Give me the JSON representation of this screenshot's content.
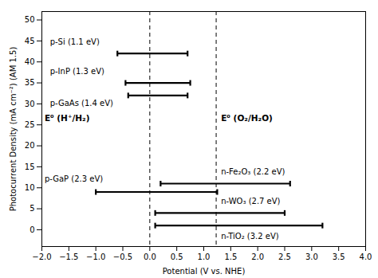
{
  "chart_data": {
    "type": "range_bar",
    "orientation": "horizontal",
    "color": "#000000",
    "xlabel": "Potential (V vs. NHE)",
    "ylabel": "Photocurrent Density (mA cm⁻²) (AM 1.5)",
    "xlim": [
      -2.0,
      4.0
    ],
    "ylim": [
      -4,
      52
    ],
    "xticks": [
      {
        "value": -2.0,
        "label": "−2.0"
      },
      {
        "value": -1.5,
        "label": "−1.5"
      },
      {
        "value": -1.0,
        "label": "−1.0"
      },
      {
        "value": -0.5,
        "label": "−0.5"
      },
      {
        "value": 0.0,
        "label": "0.0"
      },
      0.5,
      {
        "value": 1.0,
        "label": "1.0"
      },
      1.5,
      {
        "value": 2.0,
        "label": "2.0"
      },
      2.5,
      {
        "value": 3.0,
        "label": "3.0"
      },
      3.5,
      {
        "value": 4.0,
        "label": "4.0"
      }
    ],
    "yticks": [
      0,
      5,
      10,
      15,
      20,
      25,
      30,
      35,
      40,
      45,
      50
    ],
    "grid": false,
    "bars": [
      {
        "label": "p-Si (1.1 eV)",
        "y": 42,
        "x_start": -0.6,
        "x_end": 0.7,
        "label_x": -1.85,
        "label_y": 44.8
      },
      {
        "label": "p-InP (1.3 eV)",
        "y": 35,
        "x_start": -0.45,
        "x_end": 0.75,
        "label_x": -1.85,
        "label_y": 37.8
      },
      {
        "label": "p-GaAs (1.4 eV)",
        "y": 32,
        "x_start": -0.4,
        "x_end": 0.7,
        "label_x": -1.85,
        "label_y": 30.2
      },
      {
        "label": "p-GaP (2.3 eV)",
        "y": 9,
        "x_start": -1.0,
        "x_end": 1.25,
        "label_x": -1.95,
        "label_y": 12.0
      },
      {
        "label": "n-Fe₂O₃ (2.2 eV)",
        "y": 11,
        "x_start": 0.2,
        "x_end": 2.6,
        "label_x": 1.32,
        "label_y": 13.8
      },
      {
        "label": "n-WO₃ (2.7 eV)",
        "y": 4,
        "x_start": 0.1,
        "x_end": 2.5,
        "label_x": 1.32,
        "label_y": 6.8
      },
      {
        "label": "n-TiO₂ (3.2 eV)",
        "y": 1,
        "x_start": 0.1,
        "x_end": 3.2,
        "label_x": 1.32,
        "label_y": -1.5
      }
    ],
    "reference_lines": [
      {
        "x": 0.0,
        "label": "E⁰ (H⁺/H₂)",
        "label_x": -1.95,
        "label_y": 26.5
      },
      {
        "x": 1.23,
        "label": "E⁰ (O₂/H₂O)",
        "label_x": 1.32,
        "label_y": 26.5
      }
    ]
  }
}
